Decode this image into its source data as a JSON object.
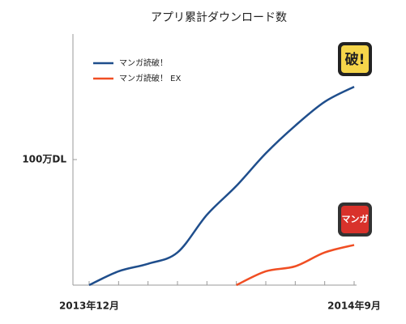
{
  "chart_data": {
    "type": "line",
    "title": "アプリ累計ダウンロード数",
    "categories": [
      "2013年12月",
      null,
      null,
      null,
      null,
      null,
      null,
      null,
      null,
      "2014年9月"
    ],
    "series": [
      {
        "name": "マンガ読破！",
        "color": "#1f4e8c",
        "values": [
          0,
          110000,
          170000,
          260000,
          560000,
          790000,
          1050000,
          1270000,
          1460000,
          1580000
        ]
      },
      {
        "name": "マンガ読破！ EX",
        "color": "#f04e23",
        "values": [
          null,
          null,
          null,
          null,
          null,
          0,
          110000,
          150000,
          260000,
          320000
        ]
      }
    ],
    "ylim": [
      0,
      2000000
    ],
    "yticks": [
      {
        "value": 1000000,
        "label": "100万DL"
      }
    ],
    "icons": [
      "破!",
      "マンガ"
    ]
  }
}
